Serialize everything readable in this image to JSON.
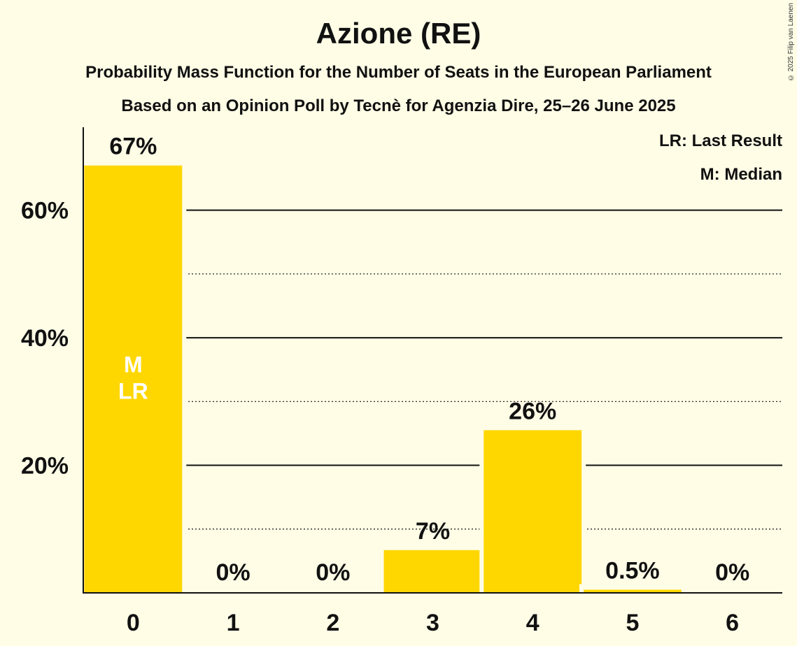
{
  "title": "Azione (RE)",
  "subtitle": "Probability Mass Function for the Number of Seats in the European Parliament",
  "subtitle2": "Based on an Opinion Poll by Tecnè for Agenzia Dire, 25–26 June 2025",
  "copyright": "© 2025 Filip van Laenen",
  "legend": {
    "last_result": "LR: Last Result",
    "median": "M: Median"
  },
  "colors": {
    "bar": "#FFD700",
    "background": "#FFFDE6",
    "median_label": "#FFFFFF"
  },
  "chart_data": {
    "type": "bar",
    "categories": [
      "0",
      "1",
      "2",
      "3",
      "4",
      "5",
      "6"
    ],
    "values": [
      67.0,
      0.0,
      0.0,
      6.7,
      25.5,
      0.5,
      0.0
    ],
    "value_labels": [
      "67%",
      "0%",
      "0%",
      "7%",
      "26%",
      "0.5%",
      "0%"
    ],
    "ylim": [
      0,
      73
    ],
    "y_ticks": [
      20,
      40,
      60
    ],
    "y_tick_labels": [
      "20%",
      "40%",
      "60%"
    ],
    "minor_gridlines": [
      10,
      30,
      50
    ],
    "median_index": 0,
    "last_result_index": 0,
    "bar_annotation": [
      "M",
      "LR"
    ],
    "xlabel": "",
    "ylabel": ""
  }
}
